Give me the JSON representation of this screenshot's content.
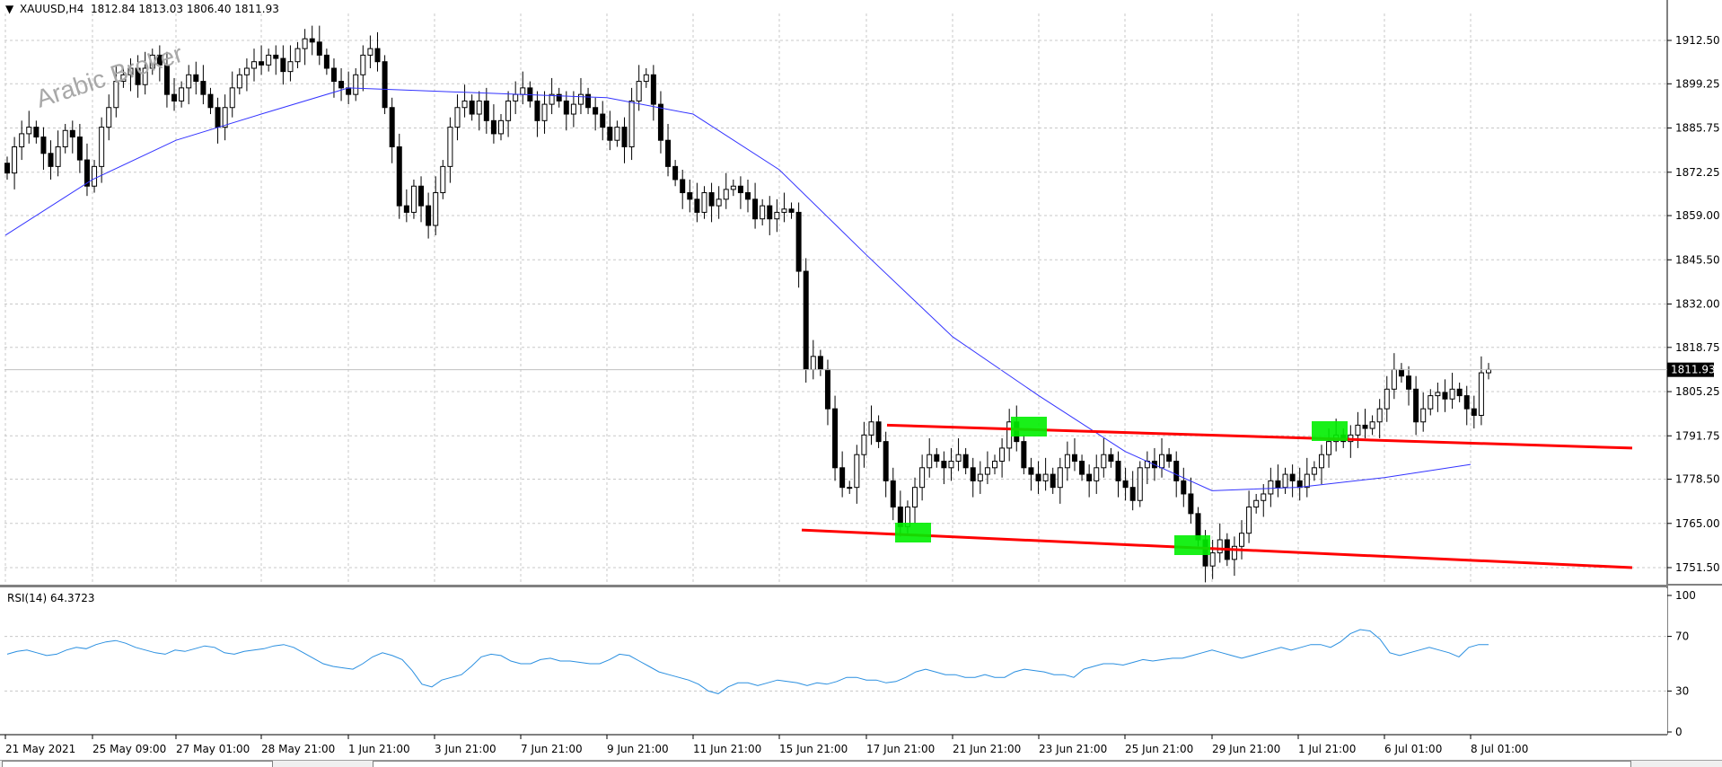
{
  "header": {
    "menu_glyph": "▼",
    "title": "XAUUSD,H4  1812.84 1813.03 1806.40 1811.93"
  },
  "watermark": "Arabic Broker",
  "price_scale": {
    "ticks": [
      "1912.50",
      "1899.25",
      "1885.75",
      "1872.25",
      "1859.00",
      "1845.50",
      "1832.00",
      "1818.75",
      "1805.25",
      "1791.75",
      "1778.50",
      "1765.00",
      "1751.50"
    ],
    "current_price": "1811.93"
  },
  "rsi_panel": {
    "title": "RSI(14) 64.3723",
    "levels": [
      "100",
      "70",
      "30",
      "0"
    ]
  },
  "time_axis": [
    "21 May 2021",
    "25 May 09:00",
    "27 May 01:00",
    "28 May 21:00",
    "1 Jun 21:00",
    "3 Jun 21:00",
    "7 Jun 21:00",
    "9 Jun 21:00",
    "11 Jun 21:00",
    "15 Jun 21:00",
    "17 Jun 21:00",
    "21 Jun 21:00",
    "23 Jun 21:00",
    "25 Jun 21:00",
    "29 Jun 21:00",
    "1 Jul 21:00",
    "6 Jul 01:00",
    "8 Jul 01:00"
  ],
  "colors": {
    "ma": "#3333ff",
    "rsi": "#2a8fe0",
    "trendline": "#ff0000",
    "marker": "#00ee00",
    "candle": "#000000",
    "grid": "#c8c8c8"
  },
  "chart_data": {
    "type": "candlestick",
    "symbol": "XAUUSD",
    "timeframe": "H4",
    "ohlc_last": {
      "open": 1812.84,
      "high": 1813.03,
      "low": 1806.4,
      "close": 1811.93
    },
    "price_range": [
      1745,
      1921
    ],
    "rsi_range": [
      0,
      100
    ],
    "closes": [
      1872,
      1880,
      1884,
      1886,
      1883,
      1878,
      1874,
      1880,
      1885,
      1883,
      1876,
      1868,
      1874,
      1886,
      1892,
      1900,
      1902,
      1904,
      1899,
      1904,
      1908,
      1905,
      1896,
      1894,
      1898,
      1902,
      1900,
      1896,
      1892,
      1886,
      1892,
      1898,
      1902,
      1904,
      1906,
      1905,
      1908,
      1907,
      1903,
      1906,
      1910,
      1913,
      1912,
      1908,
      1904,
      1900,
      1898,
      1896,
      1902,
      1908,
      1910,
      1906,
      1892,
      1880,
      1862,
      1860,
      1868,
      1862,
      1856,
      1866,
      1874,
      1886,
      1892,
      1894,
      1890,
      1894,
      1888,
      1884,
      1888,
      1894,
      1896,
      1898,
      1894,
      1888,
      1893,
      1896,
      1894,
      1890,
      1893,
      1896,
      1892,
      1890,
      1886,
      1882,
      1886,
      1880,
      1894,
      1900,
      1902,
      1893,
      1882,
      1874,
      1870,
      1866,
      1864,
      1860,
      1866,
      1862,
      1864,
      1867,
      1868,
      1866,
      1864,
      1858,
      1862,
      1858,
      1860,
      1861,
      1860,
      1842,
      1812,
      1816,
      1812,
      1800,
      1782,
      1776,
      1776,
      1786,
      1792,
      1796,
      1790,
      1778,
      1770,
      1764,
      1770,
      1776,
      1782,
      1786,
      1784,
      1782,
      1784,
      1786,
      1782,
      1778,
      1780,
      1782,
      1784,
      1788,
      1796,
      1790,
      1782,
      1780,
      1778,
      1780,
      1776,
      1782,
      1786,
      1784,
      1780,
      1778,
      1782,
      1786,
      1784,
      1778,
      1776,
      1772,
      1782,
      1784,
      1782,
      1786,
      1784,
      1778,
      1774,
      1768,
      1760,
      1752,
      1756,
      1760,
      1754,
      1758,
      1762,
      1770,
      1772,
      1774,
      1778,
      1776,
      1780,
      1778,
      1776,
      1780,
      1782,
      1786,
      1790,
      1792,
      1790,
      1792,
      1795,
      1794,
      1796,
      1800,
      1806,
      1812,
      1810,
      1806,
      1796,
      1800,
      1804,
      1805,
      1803,
      1806,
      1804,
      1800,
      1798,
      1811,
      1812
    ],
    "moving_average": [
      {
        "date": "21 May 2021",
        "value": 1853
      },
      {
        "date": "25 May 09:00",
        "value": 1870
      },
      {
        "date": "27 May 01:00",
        "value": 1882
      },
      {
        "date": "28 May 21:00",
        "value": 1890
      },
      {
        "date": "1 Jun 21:00",
        "value": 1898
      },
      {
        "date": "3 Jun 21:00",
        "value": 1897
      },
      {
        "date": "7 Jun 21:00",
        "value": 1896
      },
      {
        "date": "9 Jun 21:00",
        "value": 1895
      },
      {
        "date": "11 Jun 21:00",
        "value": 1890
      },
      {
        "date": "15 Jun 21:00",
        "value": 1873
      },
      {
        "date": "17 Jun 21:00",
        "value": 1847
      },
      {
        "date": "21 Jun 21:00",
        "value": 1822
      },
      {
        "date": "23 Jun 21:00",
        "value": 1804
      },
      {
        "date": "25 Jun 21:00",
        "value": 1787
      },
      {
        "date": "29 Jun 21:00",
        "value": 1775
      },
      {
        "date": "1 Jul 21:00",
        "value": 1776
      },
      {
        "date": "6 Jul 01:00",
        "value": 1779
      },
      {
        "date": "8 Jul 01:00",
        "value": 1783
      }
    ],
    "trendlines": [
      {
        "from": {
          "date": "17 Jun 21:00",
          "price": 1795
        },
        "to": {
          "date": "8 Jul 01:00",
          "price": 1788
        },
        "label": ""
      },
      {
        "from": {
          "date": "15 Jun 21:00",
          "price": 1763
        },
        "to": {
          "date": "8 Jul 01:00",
          "price": 1751.5
        },
        "label": ""
      }
    ],
    "rsi": [
      57,
      59,
      60,
      58,
      56,
      57,
      60,
      62,
      61,
      64,
      66,
      67,
      65,
      62,
      60,
      58,
      57,
      60,
      59,
      61,
      63,
      62,
      58,
      57,
      59,
      60,
      61,
      63,
      64,
      62,
      58,
      54,
      50,
      48,
      47,
      46,
      50,
      55,
      58,
      56,
      53,
      45,
      35,
      33,
      38,
      40,
      42,
      48,
      55,
      57,
      56,
      52,
      50,
      50,
      53,
      54,
      52,
      52,
      51,
      50,
      50,
      53,
      57,
      56,
      52,
      48,
      44,
      42,
      40,
      38,
      35,
      30,
      28,
      33,
      36,
      36,
      34,
      36,
      38,
      37,
      36,
      34,
      36,
      35,
      37,
      40,
      40,
      38,
      38,
      36,
      37,
      40,
      44,
      46,
      44,
      42,
      42,
      40,
      40,
      42,
      40,
      40,
      44,
      46,
      45,
      44,
      42,
      42,
      40,
      46,
      48,
      50,
      50,
      49,
      51,
      53,
      52,
      53,
      54,
      54,
      56,
      58,
      60,
      58,
      56,
      54,
      56,
      58,
      60,
      62,
      60,
      62,
      64,
      64,
      62,
      66,
      72,
      75,
      74,
      68,
      58,
      56,
      58,
      60,
      62,
      60,
      58,
      55,
      62,
      64,
      64
    ]
  }
}
